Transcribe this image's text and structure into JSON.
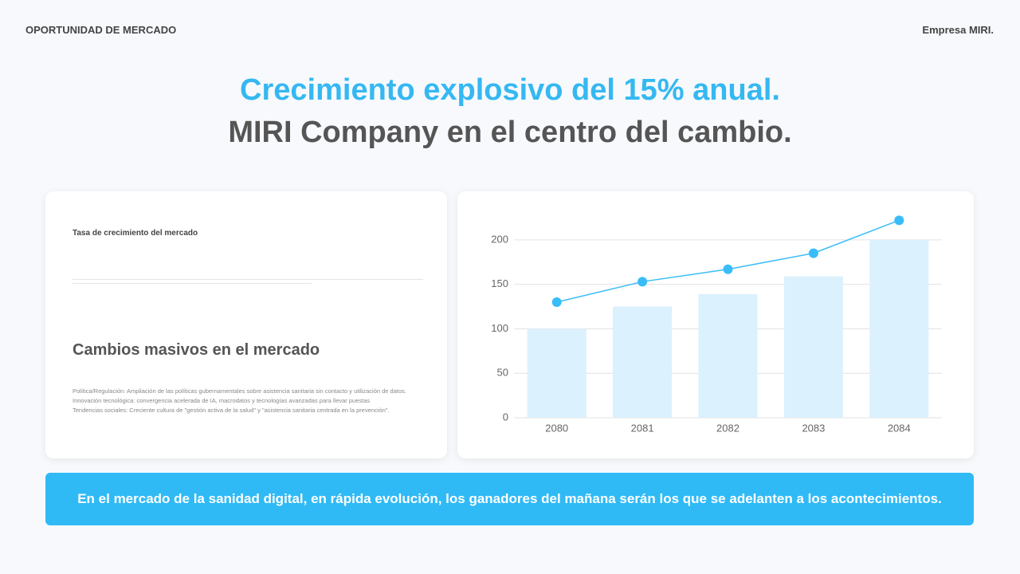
{
  "header": {
    "section": "OPORTUNIDAD DE MERCADO",
    "company": "Empresa MIRI."
  },
  "headline": {
    "highlight": "Crecimiento explosivo del 15% anual.",
    "subline": "MIRI Company en el centro del cambio."
  },
  "left_card": {
    "label": "Tasa de crecimiento del mercado",
    "heading": "Cambios masivos en el mercado",
    "points": [
      "Política/Regulación: Ampliación de las políticas gubernamentales sobre asistencia sanitaria sin contacto y utilización de datos.",
      "Innovación tecnológica: convergencia acelerada de IA, macrodatos y tecnologías avanzadas para llevar puestas",
      "Tendencias sociales: Creciente cultura de \"gestión activa de la salud\" y \"asistencia sanitaria centrada en la prevención\"."
    ]
  },
  "chart_data": {
    "type": "combo",
    "categories": [
      "2080",
      "2081",
      "2082",
      "2083",
      "2084"
    ],
    "series": [
      {
        "type": "bar",
        "color": "#dbf1fd",
        "values": [
          100,
          125,
          139,
          159,
          200
        ]
      },
      {
        "type": "line",
        "color": "#38bdf8",
        "values": [
          130,
          153,
          167,
          185,
          222
        ]
      }
    ],
    "ylim": [
      0,
      225
    ],
    "yticks": [
      0,
      50,
      100,
      150,
      200
    ],
    "grid": true
  },
  "banner": "En el mercado de la sanidad digital, en rápida evolución, los ganadores del mañana serán los que se adelanten a los acontecimientos."
}
